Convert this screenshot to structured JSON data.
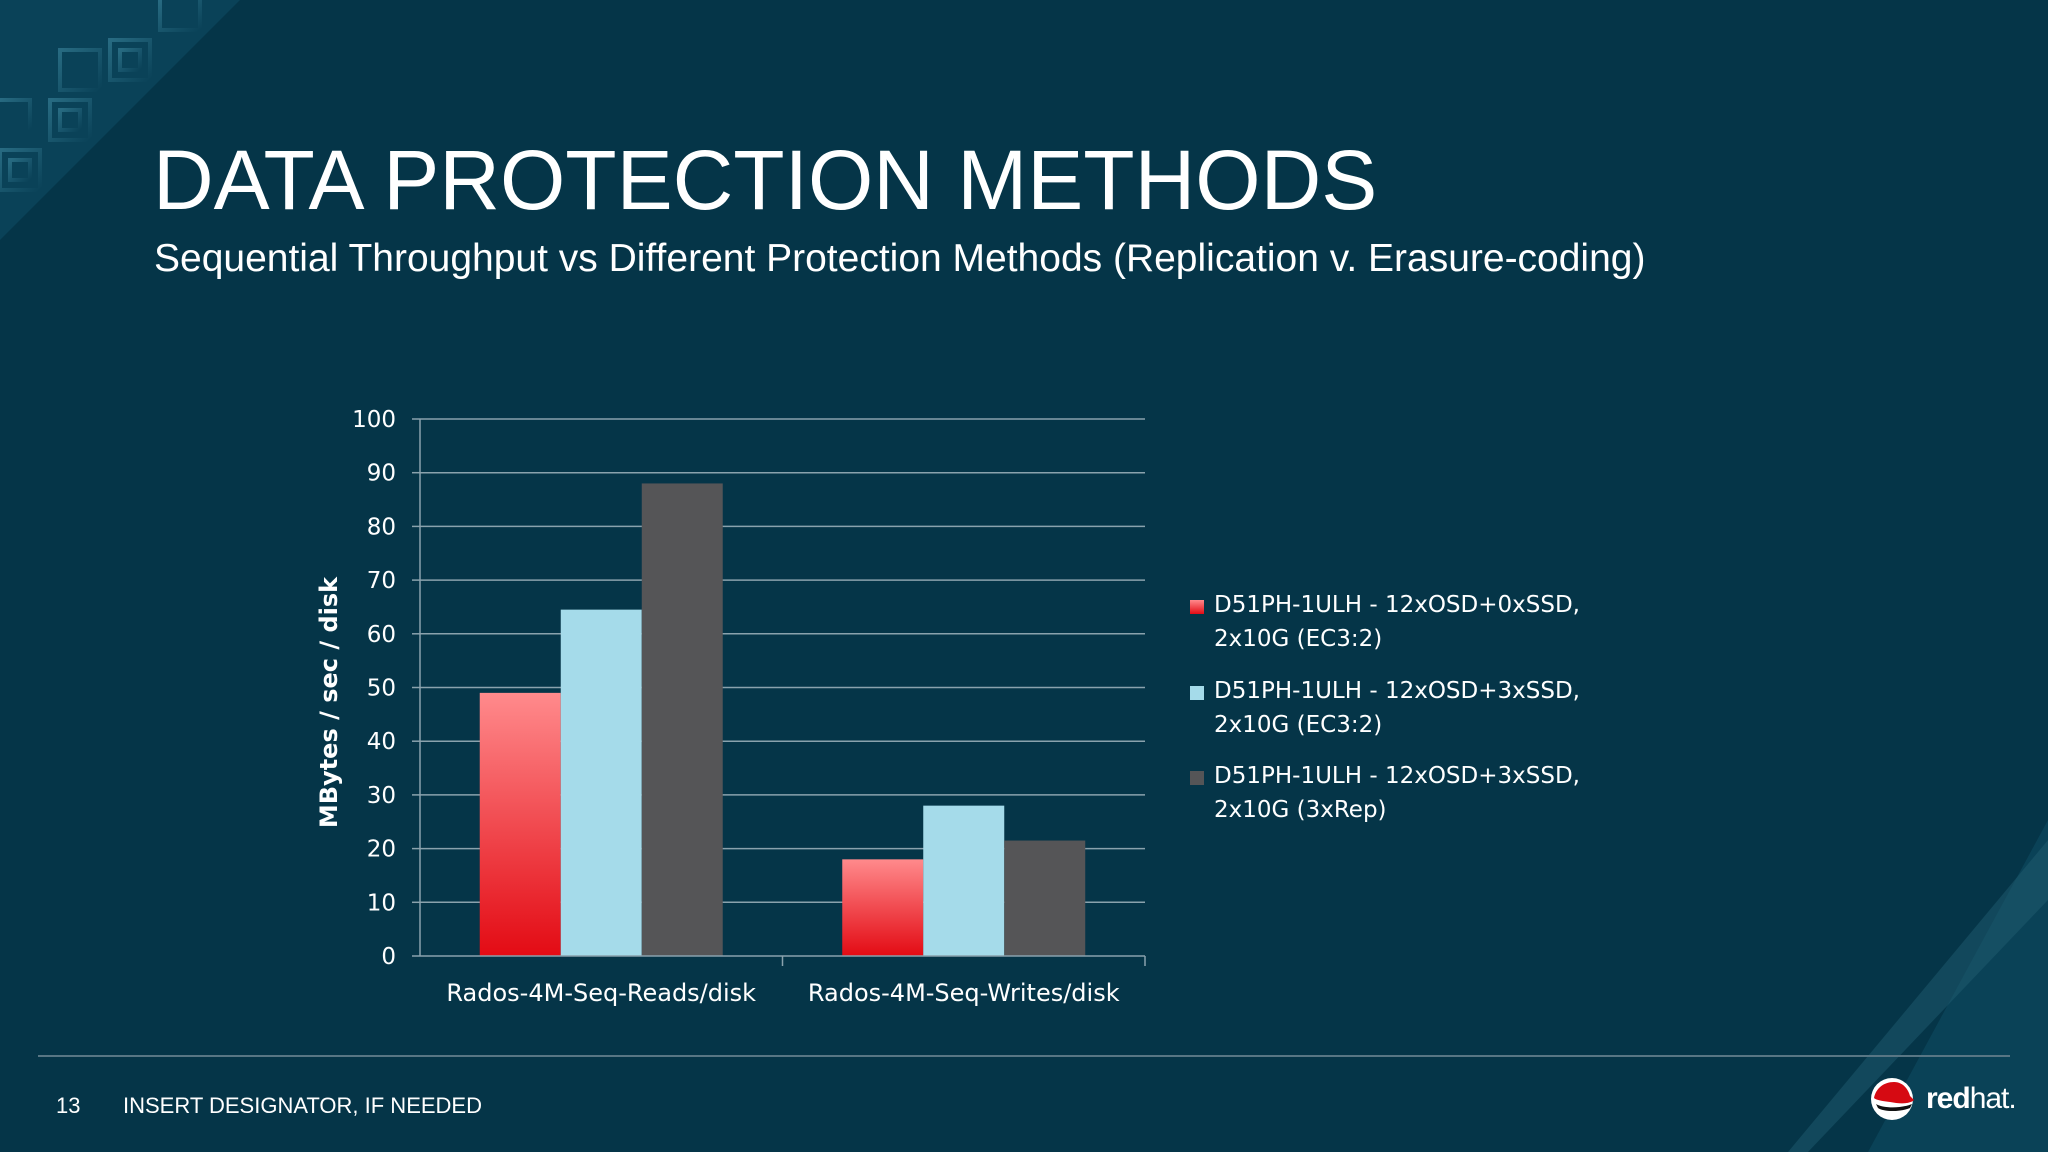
{
  "slide": {
    "title": "DATA PROTECTION METHODS",
    "subtitle": "Sequential Throughput vs Different Protection Methods (Replication v. Erasure-coding)",
    "number": "13",
    "designator": "INSERT DESIGNATOR, IF NEEDED",
    "logo_text_bold": "red",
    "logo_text_light": "hat."
  },
  "colors": {
    "background": "#053548",
    "series_ec_noSSD": "#e61c24",
    "series_ec_3SSD": "#a5dbea",
    "series_3xrep": "#555557"
  },
  "chart_data": {
    "type": "bar",
    "categories": [
      "Rados-4M-Seq-Reads/disk",
      "Rados-4M-Seq-Writes/disk"
    ],
    "series": [
      {
        "name": "D51PH-1ULH - 12xOSD+0xSSD, 2x10G (EC3:2)",
        "values": [
          49,
          18
        ],
        "color": "#e61c24"
      },
      {
        "name": "D51PH-1ULH - 12xOSD+3xSSD, 2x10G (EC3:2)",
        "values": [
          64.5,
          28
        ],
        "color": "#a5dbea"
      },
      {
        "name": "D51PH-1ULH - 12xOSD+3xSSD, 2x10G (3xRep)",
        "values": [
          88,
          21.5
        ],
        "color": "#555557"
      }
    ],
    "title": "",
    "xlabel": "",
    "ylabel": "MBytes / sec / disk",
    "ylim": [
      0,
      100
    ],
    "yticks": [
      0,
      10,
      20,
      30,
      40,
      50,
      60,
      70,
      80,
      90,
      100
    ],
    "grid": true,
    "legend": "right"
  }
}
